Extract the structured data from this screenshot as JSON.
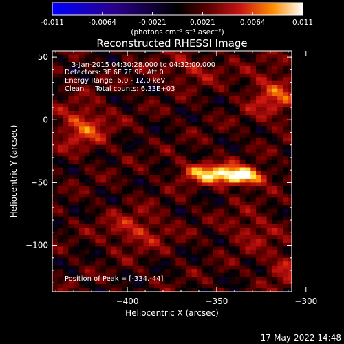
{
  "colorbar": {
    "ticks": [
      "-0.011",
      "-0.0064",
      "-0.0021",
      "0.0021",
      "0.0064",
      "0.011"
    ],
    "units_label": "(photons cm⁻² s⁻¹ asec⁻²)",
    "range": [
      -0.011,
      0.011
    ]
  },
  "plot": {
    "title": "Reconstructed RHESSI Image",
    "info_lines": [
      "3-Jan-2015 04:30:28.000 to 04:32:00.000",
      "Detectors: 3F 6F 7F 9F, Att 0",
      "Energy Range: 6.0 - 12.0 keV",
      "Clean     Total counts: 6.33E+03"
    ],
    "peak_label": "Position of Peak = [-334,-44]",
    "timestamp": "17-May-2022 14:48"
  },
  "chart_data": {
    "type": "heatmap",
    "title": "Reconstructed RHESSI Image",
    "xlabel": "Heliocentric X (arcsec)",
    "ylabel": "Heliocentric Y (arcsec)",
    "xlim": [
      -442,
      -308
    ],
    "ylim": [
      -137,
      55
    ],
    "xticks": [
      -400,
      -350,
      -300
    ],
    "yticks": [
      50,
      0,
      -50,
      -100
    ],
    "colormap": "rainbow-hot",
    "clim": [
      -0.011,
      0.011
    ],
    "peak": {
      "x": -334,
      "y": -44
    },
    "sources": [
      {
        "x": -336,
        "y": -45,
        "sx": 9,
        "sy": 5,
        "amp": 0.011
      },
      {
        "x": -356,
        "y": -42,
        "sx": 10,
        "sy": 6,
        "amp": 0.0072
      },
      {
        "x": -425,
        "y": -5,
        "sx": 10,
        "sy": 12,
        "amp": 0.0052
      },
      {
        "x": -318,
        "y": 20,
        "sx": 10,
        "sy": 14,
        "amp": 0.0046
      },
      {
        "x": -395,
        "y": -88,
        "sx": 12,
        "sy": 10,
        "amp": 0.004
      },
      {
        "x": -310,
        "y": -118,
        "sx": 9,
        "sy": 9,
        "amp": 0.0036
      },
      {
        "x": -365,
        "y": 40,
        "sx": 12,
        "sy": 8,
        "amp": 0.003
      },
      {
        "x": -330,
        "y": -88,
        "sx": 10,
        "sy": 10,
        "amp": 0.003
      }
    ]
  }
}
